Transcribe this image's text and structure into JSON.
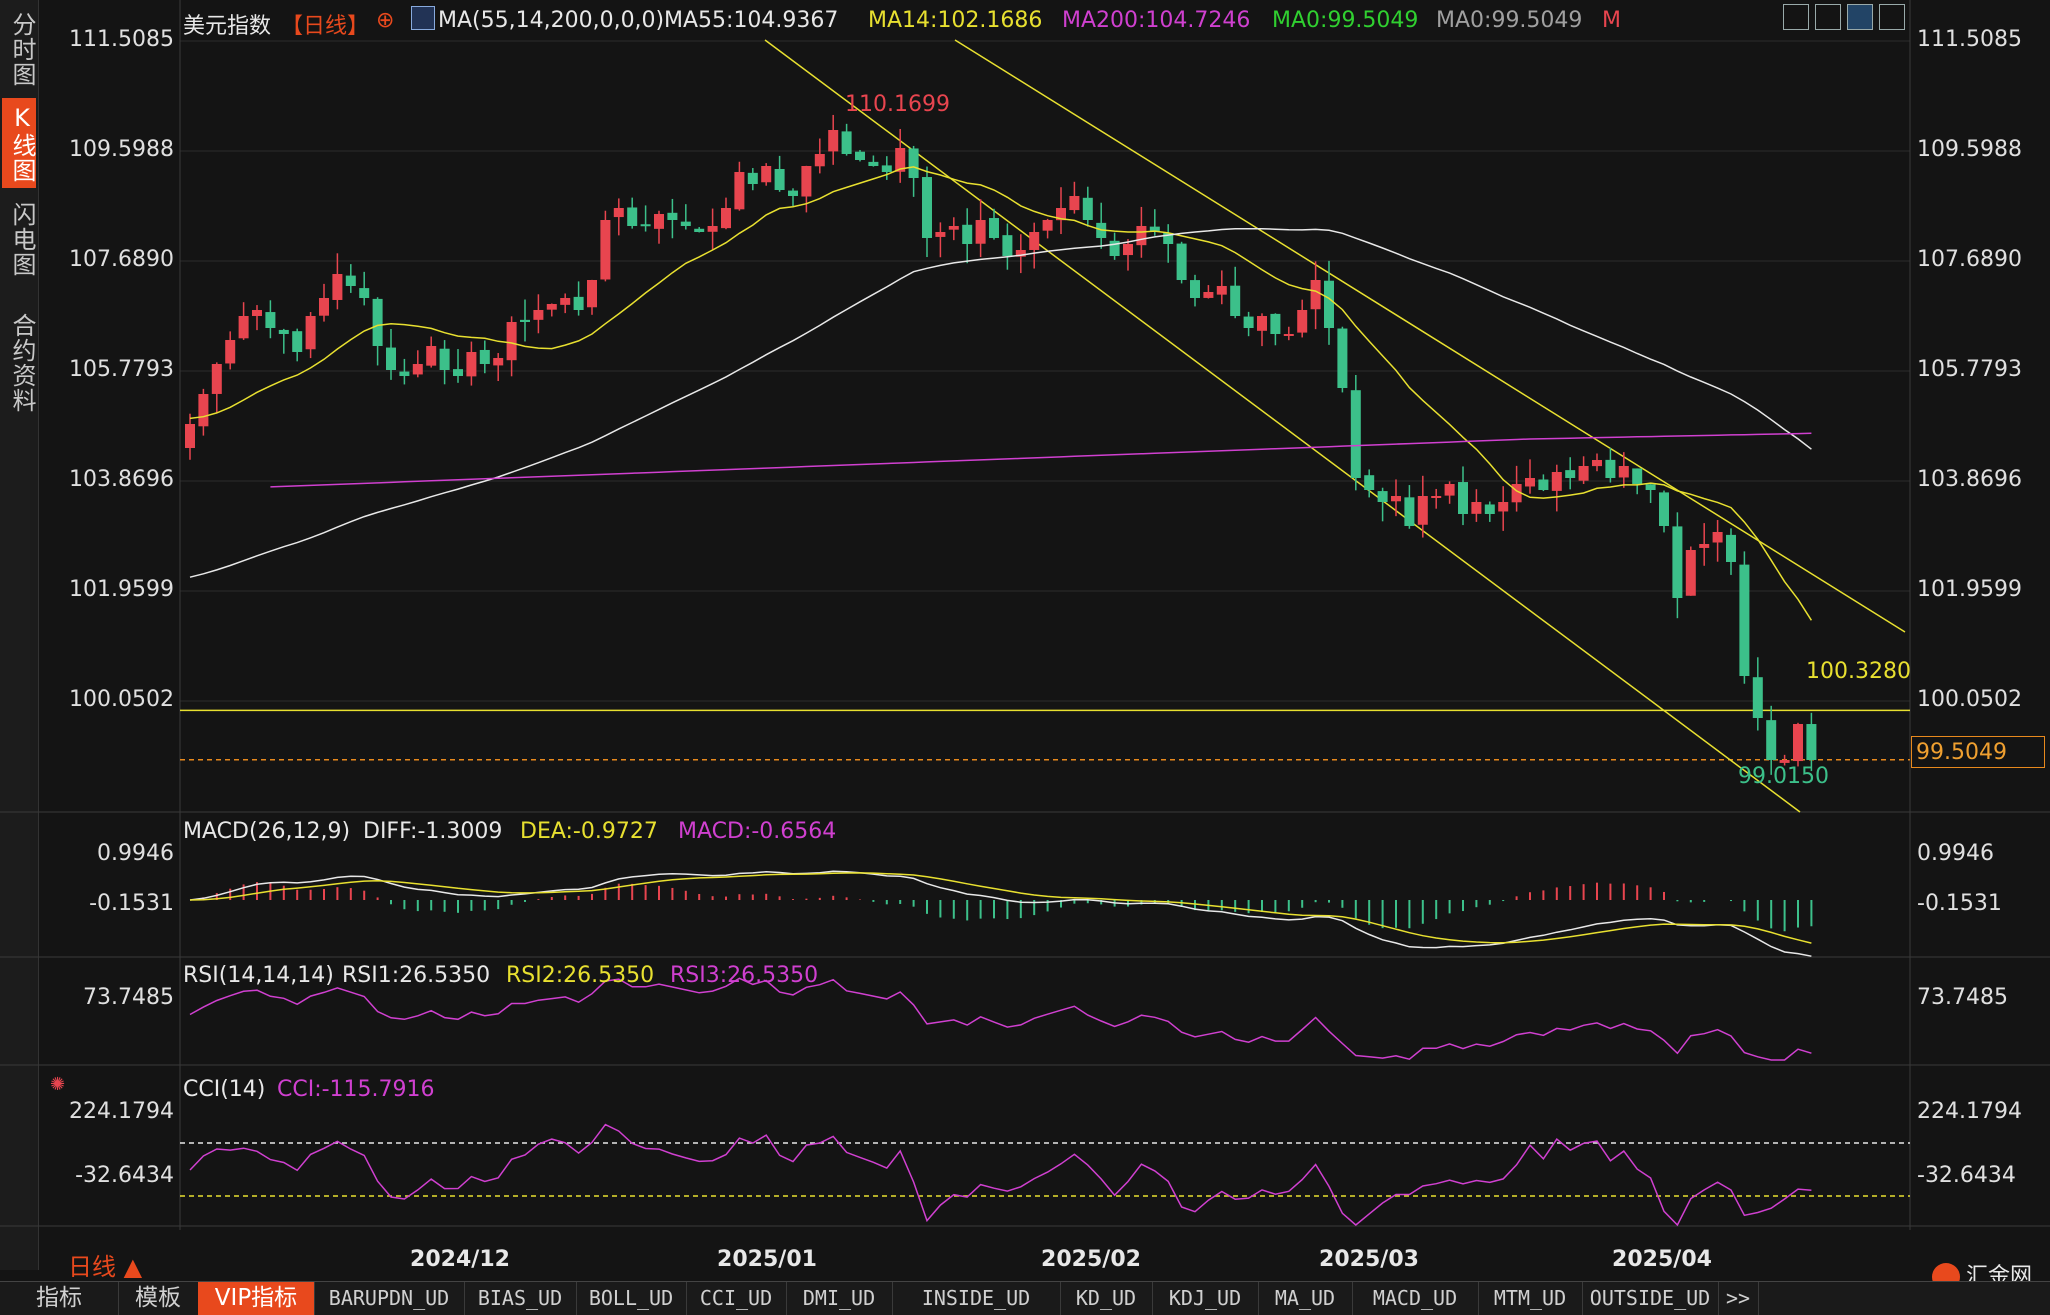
{
  "side_tabs": [
    "分时图",
    "K线图",
    "闪电图",
    "合约资料"
  ],
  "header": {
    "instrument": "美元指数",
    "period": "【日线】",
    "ma_params": "MA(55,14,200,0,0,0)",
    "ma55": "MA55:104.9367",
    "ma14": "MA14:102.1686",
    "ma200": "MA200:104.7246",
    "ma0a": "MA0:99.5049",
    "ma0b": "MA0:99.5049",
    "m": "M"
  },
  "colors": {
    "up": "#e8454f",
    "down": "#3cc08a",
    "ma14": "#e8e030",
    "ma55": "#e8e8e8",
    "ma200": "#d040d0",
    "accent": "#e8491d"
  },
  "price_axis": [
    "111.5085",
    "109.5988",
    "107.6890",
    "105.7793",
    "103.8696",
    "101.9599",
    "100.0502"
  ],
  "annotations": {
    "high": "110.1699",
    "low": "99.0150",
    "hline": "100.3280",
    "last": "99.5049"
  },
  "macd": {
    "title": "MACD(26,12,9)",
    "diff": "DIFF:-1.3009",
    "dea": "DEA:-0.9727",
    "macd": "MACD:-0.6564",
    "axis": [
      "0.9946",
      "-0.1531"
    ]
  },
  "rsi": {
    "title": "RSI(14,14,14)",
    "rsi1": "RSI1:26.5350",
    "rsi2": "RSI2:26.5350",
    "rsi3": "RSI3:26.5350",
    "axis": [
      "73.7485"
    ]
  },
  "cci": {
    "title": "CCI(14)",
    "cci": "CCI:-115.7916",
    "axis": [
      "224.1794",
      "-32.6434"
    ]
  },
  "x_axis": [
    "2024/12",
    "2025/01",
    "2025/02",
    "2025/03",
    "2025/04"
  ],
  "period_label": "日线 ▲",
  "brand": "汇金网",
  "bottom_tabs": [
    "指标",
    "模板",
    "VIP指标",
    "BARUPDN_UD",
    "BIAS_UD",
    "BOLL_UD",
    "CCI_UD",
    "DMI_UD",
    "INSIDE_UD",
    "KD_UD",
    "KDJ_UD",
    "MA_UD",
    "MACD_UD",
    "MTM_UD",
    "OUTSIDE_UD",
    ">>"
  ],
  "chart_data": {
    "type": "candlestick",
    "ylim": [
      99.0,
      111.5
    ],
    "closes": [
      105.1,
      105.6,
      106.1,
      106.5,
      106.9,
      107.0,
      106.7,
      106.6,
      106.3,
      106.9,
      107.2,
      107.6,
      107.4,
      107.2,
      106.4,
      106.0,
      105.9,
      106.1,
      106.4,
      106.0,
      105.9,
      106.3,
      106.1,
      106.2,
      106.8,
      106.8,
      107.0,
      107.1,
      107.2,
      107.0,
      107.5,
      108.5,
      108.7,
      108.4,
      108.4,
      108.6,
      108.5,
      108.4,
      108.3,
      108.4,
      108.7,
      109.3,
      109.1,
      109.4,
      109.0,
      108.9,
      109.4,
      109.6,
      110.0,
      109.6,
      109.5,
      109.4,
      109.3,
      109.7,
      109.2,
      108.2,
      108.3,
      108.4,
      108.1,
      108.5,
      108.2,
      107.9,
      108.0,
      108.3,
      108.5,
      108.7,
      108.9,
      108.5,
      108.2,
      107.9,
      108.1,
      108.4,
      108.3,
      108.1,
      107.5,
      107.2,
      107.3,
      107.4,
      106.9,
      106.7,
      106.9,
      106.6,
      106.6,
      107.0,
      107.5,
      106.7,
      105.7,
      104.2,
      104.0,
      103.8,
      103.9,
      103.4,
      103.9,
      103.9,
      104.1,
      103.6,
      103.8,
      103.6,
      103.8,
      104.1,
      104.2,
      104.0,
      104.3,
      104.2,
      104.4,
      104.5,
      104.2,
      104.4,
      104.1,
      104.0,
      103.4,
      102.2,
      103.0,
      103.1,
      103.3,
      102.8,
      100.9,
      100.2,
      99.5,
      99.5,
      100.1,
      99.5
    ],
    "hline": 100.328,
    "dashed_level": 99.5049
  }
}
